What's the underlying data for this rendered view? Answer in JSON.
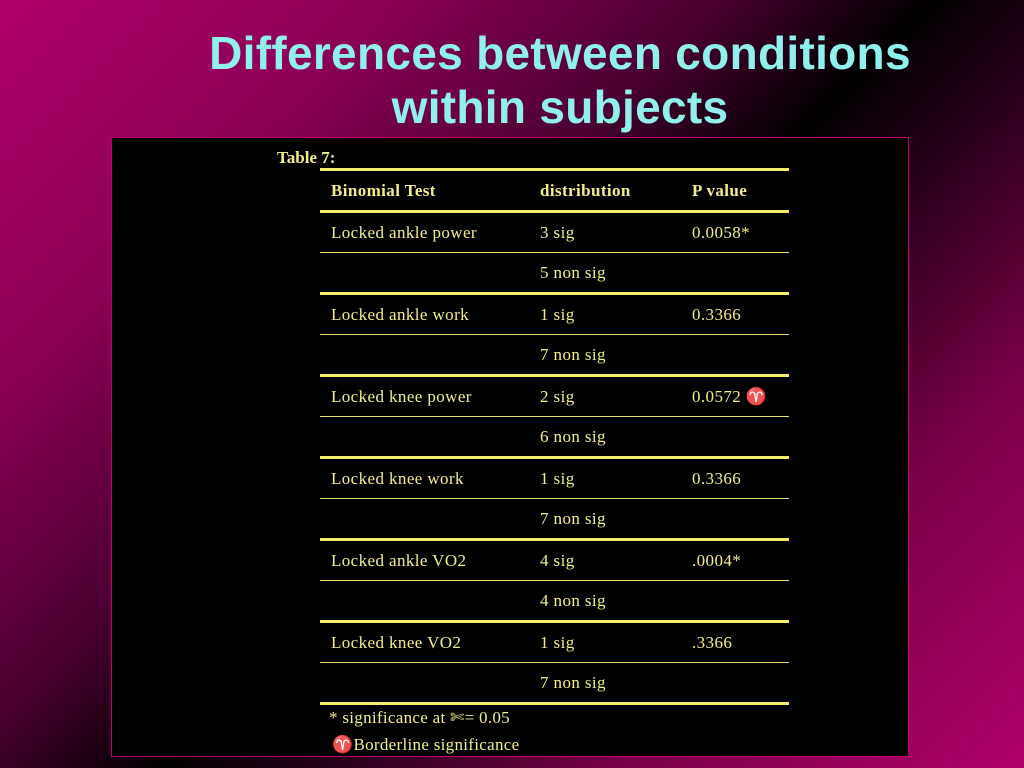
{
  "slide": {
    "title_line1": "Differences between conditions",
    "title_line2": "within subjects"
  },
  "table": {
    "caption": "Table 7:",
    "headers": [
      "Binomial Test",
      "distribution",
      "P value"
    ],
    "rows": [
      [
        "Locked ankle power",
        "3 sig",
        "0.0058*"
      ],
      [
        "",
        "5 non sig",
        ""
      ],
      [
        "Locked ankle work",
        "1 sig",
        "0.3366"
      ],
      [
        "",
        "7 non sig",
        ""
      ],
      [
        "Locked knee power",
        "2 sig",
        "0.0572 ♈"
      ],
      [
        "",
        "6 non sig",
        ""
      ],
      [
        "Locked knee work",
        "1 sig",
        "0.3366"
      ],
      [
        "",
        "7 non sig",
        ""
      ],
      [
        "Locked ankle VO2",
        "4 sig",
        ".0004*"
      ],
      [
        "",
        "4 non sig",
        ""
      ],
      [
        "Locked knee VO2",
        "1 sig",
        ".3366"
      ],
      [
        "",
        "7 non sig",
        ""
      ]
    ],
    "footnote1": "* significance at ✄= 0.05",
    "footnote2": "♈Borderline significance"
  },
  "colors": {
    "title": "#8ff0ec",
    "table_text": "#f2ee8a",
    "panel_border": "#c0006e"
  }
}
